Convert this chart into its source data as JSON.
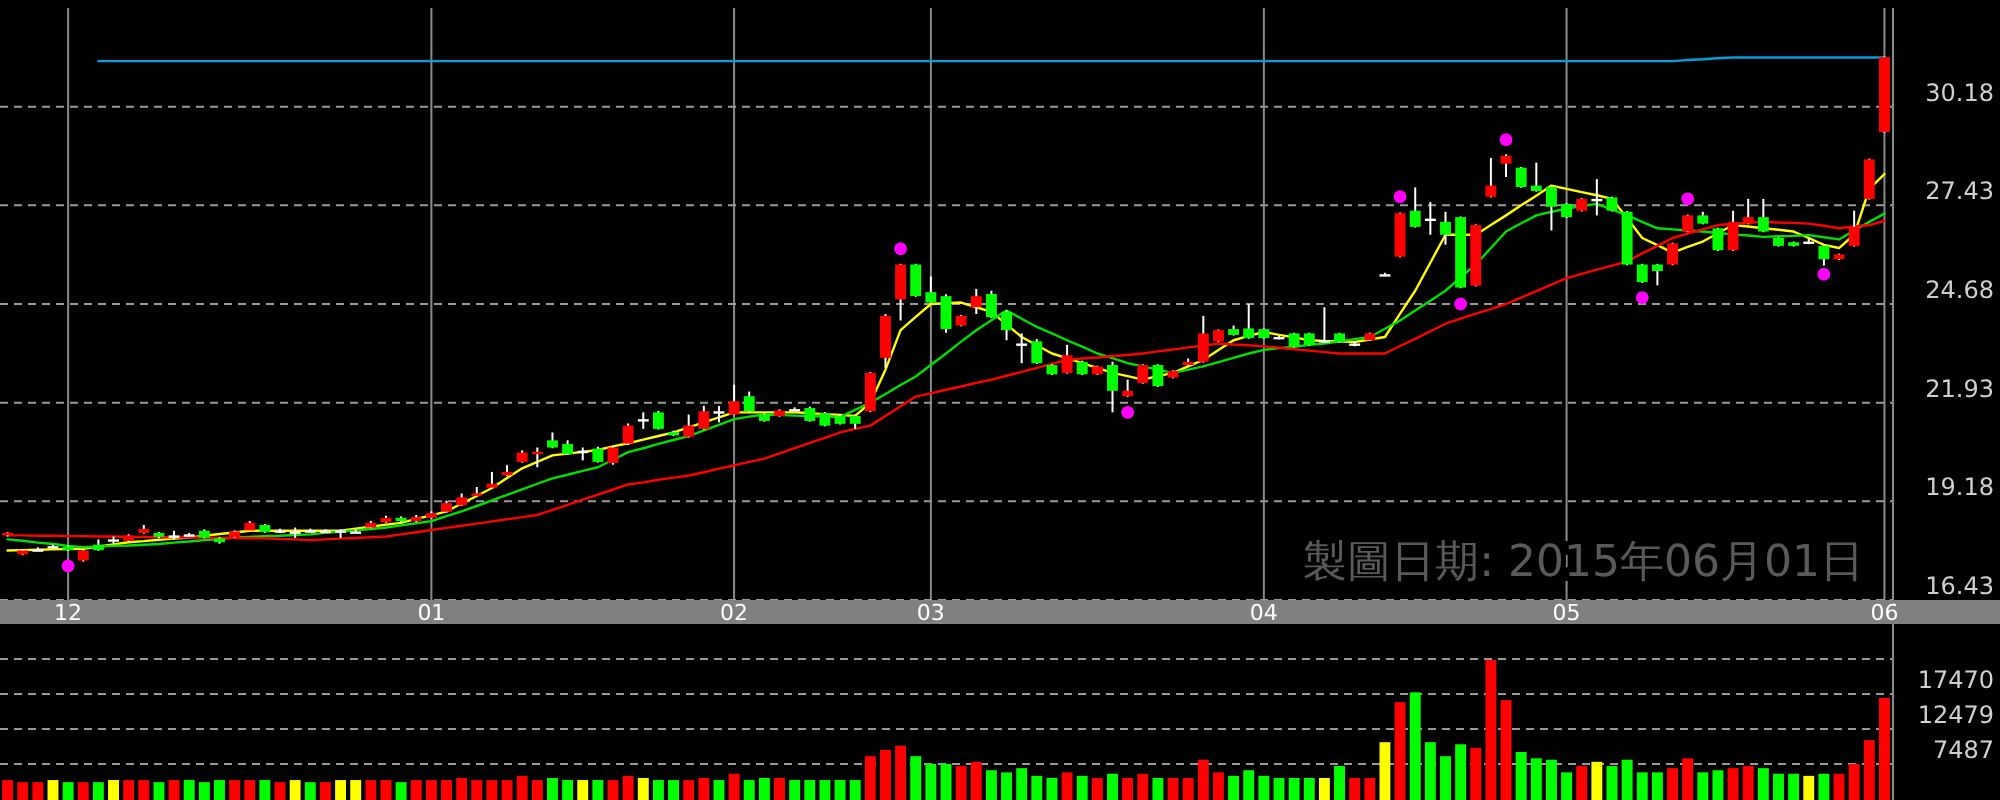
{
  "chart_data": [
    {
      "type": "candlestick",
      "categories": [
        null,
        null,
        null,
        null,
        "12",
        null,
        null,
        null,
        null,
        null,
        null,
        null,
        null,
        null,
        null,
        null,
        null,
        null,
        null,
        null,
        null,
        null,
        null,
        null,
        null,
        null,
        null,
        null,
        "01",
        null,
        null,
        null,
        null,
        null,
        null,
        null,
        null,
        null,
        null,
        null,
        null,
        null,
        null,
        null,
        null,
        null,
        null,
        null,
        "02",
        null,
        null,
        null,
        null,
        null,
        null,
        null,
        null,
        null,
        null,
        null,
        null,
        "03",
        null,
        null,
        null,
        null,
        null,
        null,
        null,
        null,
        null,
        null,
        null,
        null,
        null,
        null,
        null,
        null,
        null,
        null,
        null,
        null,
        null,
        "04",
        null,
        null,
        null,
        null,
        null,
        null,
        null,
        null,
        null,
        null,
        null,
        null,
        null,
        null,
        null,
        null,
        null,
        null,
        null,
        "05",
        null,
        null,
        null,
        null,
        null,
        null,
        null,
        null,
        null,
        null,
        null,
        null,
        null,
        null,
        null,
        null,
        null,
        null,
        null,
        null,
        "06"
      ],
      "ohlc": [
        [
          18.23,
          18.32,
          18.2,
          18.3
        ],
        [
          17.7,
          17.83,
          17.68,
          17.81
        ],
        [
          17.84,
          17.9,
          17.8,
          17.84
        ],
        [
          17.93,
          17.97,
          17.9,
          17.93
        ],
        [
          17.92,
          17.95,
          17.8,
          17.82
        ],
        [
          17.53,
          17.85,
          17.5,
          17.81
        ],
        [
          17.97,
          18.12,
          17.8,
          17.82
        ],
        [
          18.12,
          18.2,
          18.0,
          18.12
        ],
        [
          18.08,
          18.26,
          18.05,
          18.23
        ],
        [
          18.3,
          18.52,
          18.28,
          18.41
        ],
        [
          18.3,
          18.33,
          18.15,
          18.19
        ],
        [
          18.23,
          18.36,
          18.12,
          18.23
        ],
        [
          18.26,
          18.3,
          18.2,
          18.26
        ],
        [
          18.36,
          18.4,
          18.15,
          18.17
        ],
        [
          18.15,
          18.18,
          18.0,
          18.04
        ],
        [
          18.19,
          18.37,
          18.17,
          18.34
        ],
        [
          18.37,
          18.63,
          18.35,
          18.58
        ],
        [
          18.52,
          18.55,
          18.3,
          18.32
        ],
        [
          18.37,
          18.42,
          18.3,
          18.37
        ],
        [
          18.34,
          18.45,
          18.16,
          18.34
        ],
        [
          18.37,
          18.42,
          18.32,
          18.37
        ],
        [
          18.36,
          18.4,
          18.3,
          18.36
        ],
        [
          18.37,
          18.4,
          18.16,
          18.37
        ],
        [
          18.34,
          18.4,
          18.3,
          18.34
        ],
        [
          18.45,
          18.63,
          18.43,
          18.58
        ],
        [
          18.6,
          18.78,
          18.58,
          18.72
        ],
        [
          18.72,
          18.76,
          18.6,
          18.63
        ],
        [
          18.63,
          18.8,
          18.6,
          18.74
        ],
        [
          18.72,
          18.9,
          18.7,
          18.85
        ],
        [
          18.89,
          19.2,
          18.87,
          19.13
        ],
        [
          19.07,
          19.4,
          19.05,
          19.29
        ],
        [
          19.36,
          19.58,
          19.34,
          19.4
        ],
        [
          19.56,
          20.0,
          19.54,
          19.67
        ],
        [
          19.91,
          20.19,
          19.89,
          20.0
        ],
        [
          20.28,
          20.6,
          20.26,
          20.54
        ],
        [
          20.5,
          20.68,
          20.13,
          20.56
        ],
        [
          20.88,
          21.1,
          20.66,
          20.68
        ],
        [
          20.78,
          20.88,
          20.48,
          20.5
        ],
        [
          20.59,
          20.68,
          20.32,
          20.59
        ],
        [
          20.65,
          20.7,
          20.26,
          20.28
        ],
        [
          20.25,
          20.72,
          20.2,
          20.68
        ],
        [
          20.79,
          21.35,
          20.75,
          21.29
        ],
        [
          21.47,
          21.66,
          21.2,
          21.47
        ],
        [
          21.66,
          21.7,
          21.18,
          21.2
        ],
        [
          21.11,
          21.15,
          21.0,
          21.02
        ],
        [
          20.98,
          21.6,
          20.96,
          21.29
        ],
        [
          21.2,
          21.84,
          21.18,
          21.69
        ],
        [
          21.69,
          21.84,
          21.38,
          21.69
        ],
        [
          21.6,
          22.43,
          21.58,
          21.97
        ],
        [
          22.11,
          22.24,
          21.67,
          21.69
        ],
        [
          21.6,
          21.63,
          21.4,
          21.42
        ],
        [
          21.56,
          21.74,
          21.54,
          21.71
        ],
        [
          21.75,
          21.8,
          21.7,
          21.75
        ],
        [
          21.78,
          21.82,
          21.4,
          21.42
        ],
        [
          21.64,
          21.67,
          21.27,
          21.29
        ],
        [
          21.56,
          21.6,
          21.32,
          21.34
        ],
        [
          21.56,
          21.6,
          21.2,
          21.34
        ],
        [
          21.69,
          22.78,
          21.67,
          22.76
        ],
        [
          23.18,
          24.4,
          22.9,
          24.35
        ],
        [
          24.81,
          25.8,
          24.22,
          25.78
        ],
        [
          25.78,
          25.8,
          24.88,
          24.9
        ],
        [
          25.01,
          25.45,
          24.7,
          24.72
        ],
        [
          24.9,
          24.95,
          23.88,
          23.98
        ],
        [
          24.08,
          24.37,
          24.06,
          24.35
        ],
        [
          24.59,
          25.1,
          24.4,
          24.9
        ],
        [
          24.96,
          25.05,
          24.29,
          24.31
        ],
        [
          24.46,
          24.5,
          23.67,
          23.95
        ],
        [
          23.58,
          23.86,
          23.03,
          23.58
        ],
        [
          23.64,
          23.7,
          23.01,
          23.03
        ],
        [
          22.98,
          23.0,
          22.7,
          22.72
        ],
        [
          22.76,
          23.54,
          22.74,
          23.25
        ],
        [
          23.07,
          23.1,
          22.7,
          22.72
        ],
        [
          22.72,
          22.96,
          22.7,
          22.94
        ],
        [
          22.98,
          23.07,
          21.66,
          22.26
        ],
        [
          22.11,
          22.57,
          22.09,
          22.26
        ],
        [
          22.48,
          23.0,
          22.46,
          22.98
        ],
        [
          22.98,
          23.0,
          22.37,
          22.39
        ],
        [
          22.63,
          22.83,
          22.61,
          22.81
        ],
        [
          22.98,
          23.16,
          22.96,
          23.07
        ],
        [
          23.07,
          24.35,
          23.05,
          23.86
        ],
        [
          23.64,
          23.97,
          23.62,
          23.95
        ],
        [
          23.98,
          24.08,
          23.8,
          23.82
        ],
        [
          24.0,
          24.68,
          23.71,
          23.73
        ],
        [
          23.98,
          24.0,
          23.71,
          23.73
        ],
        [
          23.76,
          23.8,
          23.7,
          23.76
        ],
        [
          23.86,
          23.88,
          23.47,
          23.49
        ],
        [
          23.86,
          23.88,
          23.52,
          23.54
        ],
        [
          23.67,
          24.59,
          23.6,
          23.67
        ],
        [
          23.86,
          23.88,
          23.6,
          23.62
        ],
        [
          23.58,
          23.65,
          23.5,
          23.58
        ],
        [
          23.67,
          23.88,
          23.65,
          23.86
        ],
        [
          25.51,
          25.55,
          25.47,
          25.51
        ],
        [
          26.0,
          27.23,
          25.98,
          27.21
        ],
        [
          27.28,
          27.93,
          26.81,
          26.83
        ],
        [
          27.06,
          27.52,
          26.61,
          27.06
        ],
        [
          26.97,
          27.25,
          26.33,
          26.61
        ],
        [
          27.1,
          27.12,
          25.12,
          25.14
        ],
        [
          25.19,
          26.9,
          25.17,
          26.88
        ],
        [
          27.67,
          28.75,
          27.65,
          27.98
        ],
        [
          28.59,
          28.85,
          28.22,
          28.81
        ],
        [
          28.48,
          28.5,
          27.92,
          27.94
        ],
        [
          27.98,
          28.62,
          27.81,
          27.83
        ],
        [
          27.94,
          27.96,
          26.73,
          27.39
        ],
        [
          27.47,
          27.49,
          27.08,
          27.1
        ],
        [
          27.28,
          27.63,
          27.26,
          27.61
        ],
        [
          27.61,
          28.16,
          27.15,
          27.61
        ],
        [
          27.65,
          27.67,
          27.26,
          27.28
        ],
        [
          27.25,
          27.27,
          25.76,
          25.78
        ],
        [
          25.78,
          25.8,
          25.27,
          25.29
        ],
        [
          25.78,
          25.8,
          25.2,
          25.6
        ],
        [
          25.78,
          26.39,
          25.76,
          26.37
        ],
        [
          26.7,
          27.17,
          26.68,
          27.15
        ],
        [
          27.15,
          27.25,
          26.9,
          26.92
        ],
        [
          26.79,
          26.81,
          26.16,
          26.18
        ],
        [
          26.18,
          27.28,
          26.16,
          26.97
        ],
        [
          26.92,
          27.61,
          26.9,
          27.1
        ],
        [
          27.1,
          27.61,
          26.68,
          26.7
        ],
        [
          26.52,
          26.54,
          26.28,
          26.3
        ],
        [
          26.4,
          26.42,
          26.28,
          26.3
        ],
        [
          26.42,
          26.5,
          26.35,
          26.42
        ],
        [
          26.3,
          26.32,
          25.75,
          25.93
        ],
        [
          25.93,
          26.08,
          25.91,
          26.06
        ],
        [
          26.3,
          27.28,
          26.28,
          26.83
        ],
        [
          27.61,
          28.73,
          27.59,
          28.71
        ],
        [
          29.47,
          31.58,
          29.45,
          31.56
        ]
      ],
      "colors": [
        "#ff0000",
        "#ff0000",
        "#ffffff",
        "#ffffff",
        "#00ff00",
        "#ff0000",
        "#00ff00",
        "#ffffff",
        "#ff0000",
        "#ff0000",
        "#00ff00",
        "#ffffff",
        "#ffffff",
        "#00ff00",
        "#00ff00",
        "#ff0000",
        "#ff0000",
        "#00ff00",
        "#ffffff",
        "#ffffff",
        "#ffffff",
        "#ffffff",
        "#ffffff",
        "#ffffff",
        "#ff0000",
        "#ff0000",
        "#00ff00",
        "#ff0000",
        "#ff0000",
        "#ff0000",
        "#ff0000",
        "#ff0000",
        "#ff0000",
        "#ff0000",
        "#ff0000",
        "#ff0000",
        "#00ff00",
        "#00ff00",
        "#ffffff",
        "#00ff00",
        "#ff0000",
        "#ff0000",
        "#ffffff",
        "#00ff00",
        "#00ff00",
        "#ff0000",
        "#ff0000",
        "#ffffff",
        "#ff0000",
        "#00ff00",
        "#00ff00",
        "#ff0000",
        "#ffffff",
        "#00ff00",
        "#00ff00",
        "#00ff00",
        "#00ff00",
        "#ff0000",
        "#ff0000",
        "#ff0000",
        "#00ff00",
        "#00ff00",
        "#00ff00",
        "#ff0000",
        "#ff0000",
        "#00ff00",
        "#00ff00",
        "#ffffff",
        "#00ff00",
        "#00ff00",
        "#ff0000",
        "#00ff00",
        "#ff0000",
        "#00ff00",
        "#ff0000",
        "#ff0000",
        "#00ff00",
        "#ff0000",
        "#ff0000",
        "#ff0000",
        "#ff0000",
        "#00ff00",
        "#00ff00",
        "#00ff00",
        "#ffffff",
        "#00ff00",
        "#00ff00",
        "#ffffff",
        "#00ff00",
        "#ffffff",
        "#ff0000",
        "#ffffff",
        "#ff0000",
        "#00ff00",
        "#ffffff",
        "#00ff00",
        "#00ff00",
        "#ff0000",
        "#ff0000",
        "#ff0000",
        "#00ff00",
        "#00ff00",
        "#00ff00",
        "#00ff00",
        "#ff0000",
        "#ffffff",
        "#00ff00",
        "#00ff00",
        "#00ff00",
        "#00ff00",
        "#ff0000",
        "#ff0000",
        "#00ff00",
        "#00ff00",
        "#ff0000",
        "#ff0000",
        "#00ff00",
        "#00ff00",
        "#00ff00",
        "#ffffff",
        "#00ff00",
        "#ff0000",
        "#ff0000",
        "#ff0000",
        "#ff0000"
      ],
      "ylim": [
        16.43,
        32.93
      ],
      "yticks": [
        16.43,
        19.18,
        21.93,
        24.68,
        27.43,
        30.18
      ],
      "grid": true,
      "annotations": [
        "製圖日期: 2015年06月01日"
      ],
      "series": [
        {
          "type": "line",
          "color": "#ffff00",
          "values": [
            17.81,
            17.82,
            17.83,
            17.84,
            17.85,
            17.86,
            17.92,
            17.98,
            18.04,
            18.07,
            18.11,
            18.14,
            18.17,
            18.22,
            18.27,
            18.31,
            18.36,
            18.36,
            18.36,
            18.36,
            18.36,
            18.36,
            18.36,
            18.42,
            18.47,
            18.53,
            18.58,
            18.69,
            18.79,
            18.9,
            19.12,
            19.33,
            19.55,
            19.83,
            20.1,
            20.28,
            20.46,
            20.51,
            20.56,
            20.61,
            20.71,
            20.8,
            20.9,
            21.0,
            21.1,
            21.24,
            21.38,
            21.52,
            21.66,
            21.66,
            21.66,
            21.66,
            21.66,
            21.64,
            21.61,
            21.59,
            21.56,
            21.93,
            22.85,
            23.95,
            24.32,
            24.68,
            24.7,
            24.72,
            24.59,
            24.46,
            24.11,
            23.76,
            23.53,
            23.3,
            23.17,
            23.03,
            22.9,
            22.76,
            22.67,
            22.57,
            22.67,
            22.76,
            22.94,
            23.12,
            23.4,
            23.67,
            23.79,
            23.9,
            23.82,
            23.75,
            23.67,
            23.65,
            23.64,
            23.62,
            23.69,
            23.76,
            24.41,
            25.05,
            25.83,
            26.61,
            26.61,
            26.61,
            26.88,
            27.15,
            27.43,
            27.7,
            27.98,
            27.89,
            27.8,
            27.71,
            27.61,
            27.07,
            26.52,
            26.32,
            26.11,
            26.27,
            26.42,
            26.65,
            26.88,
            26.84,
            26.79,
            26.75,
            26.7,
            26.52,
            26.33,
            26.24,
            26.61,
            27.89,
            28.3
          ]
        },
        {
          "type": "line",
          "color": "#00e000",
          "values": [
            18.12,
            18.08,
            18.03,
            17.99,
            17.94,
            17.9,
            17.92,
            17.94,
            17.95,
            17.97,
            17.99,
            18.03,
            18.06,
            18.1,
            18.13,
            18.17,
            18.19,
            18.21,
            18.22,
            18.24,
            18.26,
            18.3,
            18.34,
            18.37,
            18.41,
            18.45,
            18.51,
            18.57,
            18.63,
            18.77,
            18.9,
            19.05,
            19.21,
            19.36,
            19.51,
            19.67,
            19.82,
            19.92,
            20.03,
            20.13,
            20.34,
            20.55,
            20.66,
            20.78,
            20.89,
            21.0,
            21.16,
            21.31,
            21.47,
            21.54,
            21.6,
            21.59,
            21.57,
            21.56,
            21.54,
            21.53,
            21.73,
            21.93,
            22.17,
            22.42,
            22.66,
            22.98,
            23.3,
            23.63,
            23.95,
            24.23,
            24.5,
            24.27,
            24.04,
            23.86,
            23.67,
            23.49,
            23.3,
            23.17,
            23.03,
            22.94,
            22.85,
            22.76,
            22.85,
            22.94,
            23.06,
            23.18,
            23.3,
            23.4,
            23.45,
            23.49,
            23.54,
            23.58,
            23.64,
            23.7,
            23.76,
            23.99,
            24.22,
            24.5,
            24.77,
            25.05,
            25.42,
            25.78,
            26.24,
            26.7,
            26.93,
            27.15,
            27.25,
            27.34,
            27.41,
            27.47,
            27.31,
            27.15,
            26.97,
            26.79,
            26.76,
            26.73,
            26.7,
            26.66,
            26.62,
            26.59,
            26.55,
            26.57,
            26.58,
            26.6,
            26.54,
            26.48,
            26.73,
            26.97,
            27.2
          ]
        },
        {
          "type": "line",
          "color": "#ff0000",
          "values": [
            18.23,
            18.23,
            18.22,
            18.22,
            18.21,
            18.21,
            18.2,
            18.2,
            18.19,
            18.19,
            18.18,
            18.18,
            18.17,
            18.17,
            18.16,
            18.16,
            18.15,
            18.15,
            18.13,
            18.12,
            18.1,
            18.12,
            18.14,
            18.16,
            18.18,
            18.2,
            18.26,
            18.32,
            18.38,
            18.44,
            18.5,
            18.56,
            18.62,
            18.68,
            18.74,
            18.8,
            18.94,
            19.08,
            19.23,
            19.37,
            19.51,
            19.65,
            19.71,
            19.78,
            19.84,
            19.9,
            19.99,
            20.09,
            20.18,
            20.28,
            20.37,
            20.52,
            20.66,
            20.81,
            20.95,
            21.1,
            21.2,
            21.29,
            21.56,
            21.83,
            22.1,
            22.19,
            22.29,
            22.38,
            22.48,
            22.57,
            22.68,
            22.79,
            22.9,
            23.01,
            23.12,
            23.16,
            23.19,
            23.23,
            23.26,
            23.3,
            23.36,
            23.41,
            23.47,
            23.52,
            23.58,
            23.55,
            23.53,
            23.5,
            23.46,
            23.42,
            23.38,
            23.34,
            23.3,
            23.3,
            23.3,
            23.3,
            23.51,
            23.71,
            23.92,
            24.13,
            24.27,
            24.41,
            24.54,
            24.68,
            24.86,
            25.04,
            25.22,
            25.4,
            25.52,
            25.64,
            25.75,
            25.87,
            26.09,
            26.3,
            26.52,
            26.64,
            26.76,
            26.88,
            26.91,
            26.94,
            26.97,
            26.95,
            26.94,
            26.92,
            26.86,
            26.79,
            26.84,
            26.88,
            27.0
          ]
        },
        {
          "type": "line",
          "color": "#00a0e0",
          "values": [
            null,
            null,
            null,
            null,
            null,
            null,
            31.45,
            31.45,
            31.45,
            31.45,
            31.45,
            31.45,
            31.45,
            31.45,
            31.45,
            31.45,
            31.45,
            31.45,
            31.45,
            31.45,
            31.45,
            31.45,
            31.45,
            31.45,
            31.45,
            31.45,
            31.45,
            31.45,
            31.45,
            31.45,
            31.45,
            31.45,
            31.45,
            31.45,
            31.45,
            31.45,
            31.45,
            31.45,
            31.45,
            31.45,
            31.45,
            31.45,
            31.45,
            31.45,
            31.45,
            31.45,
            31.45,
            31.45,
            31.45,
            31.45,
            31.45,
            31.45,
            31.45,
            31.45,
            31.45,
            31.45,
            31.45,
            31.45,
            31.45,
            31.45,
            31.45,
            31.45,
            31.45,
            31.45,
            31.45,
            31.45,
            31.45,
            31.45,
            31.45,
            31.45,
            31.45,
            31.45,
            31.45,
            31.45,
            31.45,
            31.45,
            31.45,
            31.45,
            31.45,
            31.45,
            31.45,
            31.45,
            31.45,
            31.45,
            31.45,
            31.45,
            31.45,
            31.45,
            31.45,
            31.45,
            31.45,
            31.45,
            31.45,
            31.45,
            31.45,
            31.45,
            31.45,
            31.45,
            31.45,
            31.45,
            31.45,
            31.45,
            31.45,
            31.45,
            31.45,
            31.45,
            31.45,
            31.45,
            31.45,
            31.45,
            31.45,
            31.48,
            31.5,
            31.53,
            31.55,
            31.55,
            31.55,
            31.55,
            31.55,
            31.55,
            31.55,
            31.55,
            31.55,
            31.55,
            31.55
          ]
        },
        {
          "type": "scatter",
          "color": "#ff00ff",
          "marker": "circle",
          "values": [
            null,
            null,
            null,
            null,
            17.38,
            null,
            null,
            null,
            null,
            null,
            null,
            null,
            null,
            null,
            null,
            null,
            null,
            null,
            null,
            null,
            null,
            null,
            null,
            null,
            null,
            null,
            null,
            null,
            null,
            null,
            null,
            null,
            null,
            null,
            null,
            null,
            null,
            null,
            null,
            null,
            null,
            null,
            null,
            null,
            null,
            null,
            null,
            null,
            null,
            null,
            null,
            null,
            null,
            null,
            null,
            null,
            null,
            null,
            null,
            26.22,
            null,
            null,
            null,
            null,
            null,
            null,
            null,
            null,
            null,
            null,
            null,
            null,
            null,
            null,
            21.66,
            null,
            null,
            null,
            null,
            null,
            null,
            null,
            null,
            null,
            null,
            null,
            null,
            null,
            null,
            null,
            null,
            null,
            27.67,
            null,
            null,
            null,
            24.68,
            null,
            null,
            29.26,
            null,
            null,
            null,
            null,
            null,
            null,
            null,
            null,
            24.86,
            null,
            null,
            27.61,
            null,
            null,
            null,
            null,
            null,
            null,
            null,
            null,
            25.51,
            null,
            null,
            null,
            null
          ]
        }
      ]
    },
    {
      "type": "bar",
      "categories": [
        null,
        null,
        null,
        null,
        "12",
        null,
        null,
        null,
        null,
        null,
        null,
        null,
        null,
        null,
        null,
        null,
        null,
        null,
        null,
        null,
        null,
        null,
        null,
        null,
        null,
        null,
        null,
        null,
        "01",
        null,
        null,
        null,
        null,
        null,
        null,
        null,
        null,
        null,
        null,
        null,
        null,
        null,
        null,
        null,
        null,
        null,
        null,
        null,
        "02",
        null,
        null,
        null,
        null,
        null,
        null,
        null,
        null,
        null,
        null,
        null,
        null,
        "03",
        null,
        null,
        null,
        null,
        null,
        null,
        null,
        null,
        null,
        null,
        null,
        null,
        null,
        null,
        null,
        null,
        null,
        null,
        null,
        null,
        null,
        "04",
        null,
        null,
        null,
        null,
        null,
        null,
        null,
        null,
        null,
        null,
        null,
        null,
        null,
        null,
        null,
        null,
        null,
        null,
        null,
        "05",
        null,
        null,
        null,
        null,
        null,
        null,
        null,
        null,
        null,
        null,
        null,
        null,
        null,
        null,
        null,
        null,
        null,
        null,
        null,
        null,
        "06"
      ],
      "values": [
        5200,
        4900,
        4900,
        5200,
        4900,
        4900,
        4900,
        5200,
        5200,
        5200,
        4900,
        5200,
        5200,
        4900,
        5200,
        5200,
        5200,
        5200,
        4900,
        5200,
        4900,
        4900,
        5200,
        5200,
        5200,
        5200,
        4900,
        5200,
        5200,
        5200,
        5500,
        5200,
        5200,
        5200,
        5800,
        5200,
        5500,
        5200,
        5200,
        5200,
        5200,
        5800,
        5500,
        5200,
        5200,
        5200,
        5500,
        5200,
        6100,
        5200,
        5500,
        5500,
        5200,
        5200,
        5200,
        5200,
        5200,
        8600,
        9500,
        10100,
        8600,
        7500,
        7500,
        7200,
        7800,
        6600,
        6300,
        6900,
        5800,
        5500,
        6300,
        5800,
        5500,
        6100,
        5500,
        6100,
        5500,
        5500,
        5500,
        8100,
        6300,
        5800,
        6600,
        5800,
        5500,
        5500,
        5500,
        5500,
        7200,
        5500,
        5500,
        10600,
        16300,
        17700,
        10600,
        8600,
        10300,
        9800,
        22300,
        16600,
        9200,
        8300,
        8100,
        6300,
        7200,
        7800,
        7200,
        8100,
        6300,
        6300,
        6900,
        8300,
        6300,
        6600,
        6900,
        7200,
        6900,
        6100,
        6100,
        5800,
        6100,
        6100,
        7500,
        10900,
        16900
      ],
      "colors": [
        "#ff0000",
        "#ff0000",
        "#ff0000",
        "#ffff00",
        "#00ff00",
        "#ff0000",
        "#00ff00",
        "#ffff00",
        "#ff0000",
        "#ff0000",
        "#00ff00",
        "#ff0000",
        "#00ff00",
        "#00ff00",
        "#00ff00",
        "#ff0000",
        "#ff0000",
        "#00ff00",
        "#ff0000",
        "#ffff00",
        "#00ff00",
        "#ff0000",
        "#ffff00",
        "#ffff00",
        "#ff0000",
        "#ff0000",
        "#00ff00",
        "#ff0000",
        "#ff0000",
        "#ff0000",
        "#ff0000",
        "#ff0000",
        "#ff0000",
        "#ff0000",
        "#ff0000",
        "#ff0000",
        "#00ff00",
        "#00ff00",
        "#ffff00",
        "#00ff00",
        "#ff0000",
        "#ff0000",
        "#ffff00",
        "#00ff00",
        "#00ff00",
        "#ff0000",
        "#ff0000",
        "#00ff00",
        "#ff0000",
        "#00ff00",
        "#00ff00",
        "#ff0000",
        "#00ff00",
        "#00ff00",
        "#00ff00",
        "#00ff00",
        "#00ff00",
        "#ff0000",
        "#ff0000",
        "#ff0000",
        "#00ff00",
        "#00ff00",
        "#00ff00",
        "#ff0000",
        "#ff0000",
        "#00ff00",
        "#00ff00",
        "#00ff00",
        "#00ff00",
        "#00ff00",
        "#ff0000",
        "#00ff00",
        "#ff0000",
        "#00ff00",
        "#ff0000",
        "#ff0000",
        "#00ff00",
        "#ff0000",
        "#ff0000",
        "#ff0000",
        "#ff0000",
        "#00ff00",
        "#00ff00",
        "#00ff00",
        "#00ff00",
        "#00ff00",
        "#00ff00",
        "#ffff00",
        "#00ff00",
        "#ff0000",
        "#ff0000",
        "#ffff00",
        "#ff0000",
        "#00ff00",
        "#00ff00",
        "#00ff00",
        "#00ff00",
        "#ff0000",
        "#ff0000",
        "#ff0000",
        "#00ff00",
        "#00ff00",
        "#00ff00",
        "#00ff00",
        "#ff0000",
        "#ffff00",
        "#00ff00",
        "#00ff00",
        "#00ff00",
        "#00ff00",
        "#ff0000",
        "#ff0000",
        "#00ff00",
        "#00ff00",
        "#ff0000",
        "#ff0000",
        "#00ff00",
        "#00ff00",
        "#00ff00",
        "#ffff00",
        "#00ff00",
        "#ff0000",
        "#ff0000",
        "#ff0000",
        "#ff0000"
      ],
      "ylim": [
        2360,
        27440
      ],
      "yticks": [
        7487,
        12479,
        17470,
        {
          "value": 22462,
          "label": null
        }
      ],
      "grid": "y",
      "tick_labels": "y"
    }
  ]
}
